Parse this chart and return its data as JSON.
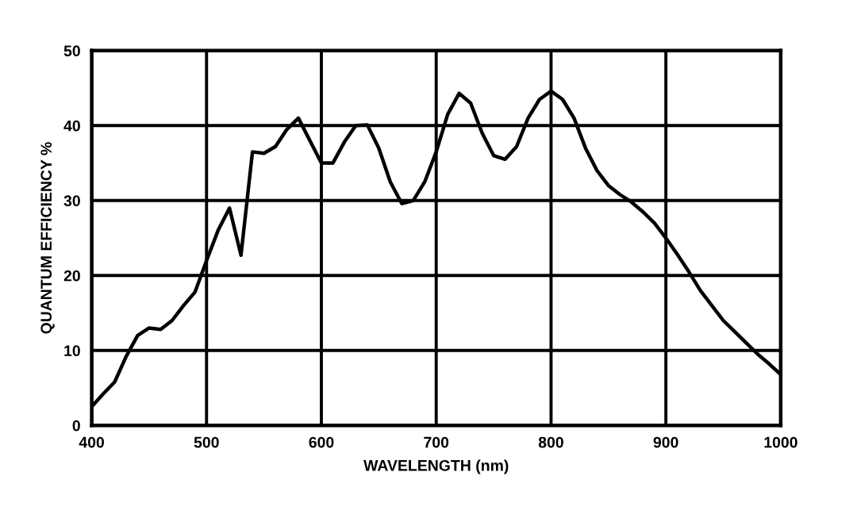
{
  "chart_data": {
    "type": "line",
    "xlabel": "WAVELENGTH (nm)",
    "ylabel": "QUANTUM EFFICIENCY %",
    "x": [
      400,
      410,
      420,
      430,
      440,
      450,
      460,
      470,
      480,
      490,
      500,
      510,
      520,
      530,
      540,
      550,
      560,
      570,
      580,
      590,
      600,
      610,
      620,
      630,
      640,
      650,
      660,
      670,
      680,
      690,
      700,
      710,
      720,
      730,
      740,
      750,
      760,
      770,
      780,
      790,
      800,
      810,
      820,
      830,
      840,
      850,
      860,
      870,
      880,
      890,
      900,
      910,
      920,
      930,
      940,
      950,
      960,
      970,
      980,
      990,
      1000
    ],
    "series": [
      {
        "color": "#000000",
        "values": [
          2.5,
          4.2,
          5.8,
          9.2,
          12,
          13,
          12.8,
          14,
          16,
          17.8,
          22,
          26,
          29,
          22.7,
          36.5,
          36.3,
          37.2,
          39.5,
          41,
          38,
          35,
          35,
          37.8,
          40,
          40.1,
          37,
          32.5,
          29.6,
          30,
          32.5,
          36.5,
          41.5,
          44.3,
          43,
          39,
          36,
          35.5,
          37.2,
          41,
          43.5,
          44.6,
          43.5,
          41,
          37,
          34,
          32,
          30.8,
          29.8,
          28.5,
          27,
          25,
          22.8,
          20.5,
          18,
          16,
          14,
          12.5,
          11,
          9.5,
          8.2,
          6.8
        ]
      }
    ],
    "xlim": [
      400,
      1000
    ],
    "xticks": [
      400,
      500,
      600,
      700,
      800,
      900,
      1000
    ],
    "ylim": [
      0,
      50
    ],
    "yticks": [
      0,
      10,
      20,
      30,
      40,
      50
    ],
    "grid": true,
    "marker": "none",
    "line_style": "solid"
  }
}
